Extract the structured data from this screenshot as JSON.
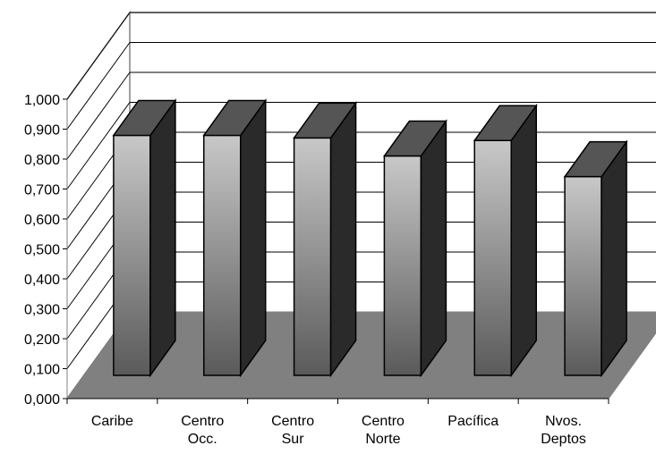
{
  "chart_data": {
    "type": "bar",
    "categories": [
      [
        "Caribe"
      ],
      [
        "Centro",
        "Occ."
      ],
      [
        "Centro",
        "Sur"
      ],
      [
        "Centro",
        "Norte"
      ],
      [
        "Pacífica"
      ],
      [
        "Nvos.",
        "Deptos"
      ]
    ],
    "values": [
      0.93,
      0.93,
      0.92,
      0.85,
      0.91,
      0.77
    ],
    "yticks": [
      "0,000",
      "0,100",
      "0,200",
      "0,300",
      "0,400",
      "0,500",
      "0,600",
      "0,700",
      "0,800",
      "0,900",
      "1,000"
    ],
    "ylim": [
      0,
      1
    ],
    "grid": true,
    "legend": "none",
    "colors": {
      "floor": "#808080",
      "bar_top": "#555555",
      "bar_side": "#2a2a2a",
      "bar_front_light": "#c8c8c8",
      "bar_front_dark": "#5a5a5a"
    }
  }
}
